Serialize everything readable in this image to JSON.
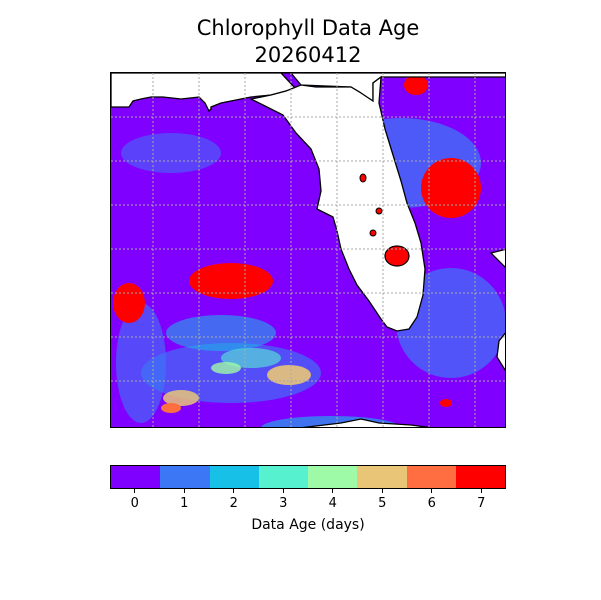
{
  "figure": {
    "title": "Chlorophyll Data Age",
    "date": "20260412"
  },
  "map": {
    "land_color": "#ffffff",
    "coast_color": "#000000",
    "gridline_style": "dotted gray",
    "missing_data_color": "#ff0000",
    "dominant_age_days": 0
  },
  "colorbar": {
    "label": "Data Age (days)",
    "ticks": [
      "0",
      "1",
      "2",
      "3",
      "4",
      "5",
      "6",
      "7"
    ],
    "colors": [
      "#8000ff",
      "#3c78f6",
      "#16c0e6",
      "#56f2d0",
      "#9efaa6",
      "#e9c578",
      "#fe6e40",
      "#ff0000"
    ]
  }
}
